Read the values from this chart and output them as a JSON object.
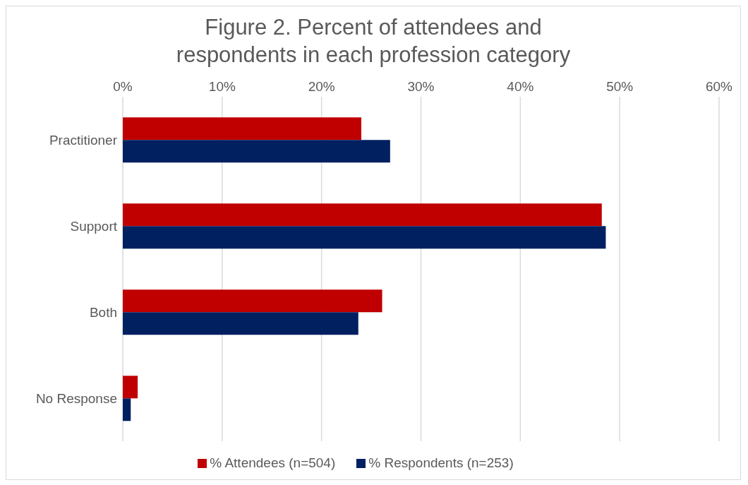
{
  "chart_data": {
    "type": "bar",
    "orientation": "horizontal",
    "title": "Figure 2. Percent of attendees and respondents in each profession category",
    "categories": [
      "Practitioner",
      "Support",
      "Both",
      "No Response"
    ],
    "series": [
      {
        "name": "% Attendees (n=504)",
        "color": "#c00000",
        "values": [
          24.0,
          48.2,
          26.1,
          1.5
        ]
      },
      {
        "name": "% Respondents (n=253)",
        "color": "#002060",
        "values": [
          26.9,
          48.6,
          23.7,
          0.8
        ]
      }
    ],
    "xlim": [
      0,
      60
    ],
    "xticks": [
      {
        "value": 0,
        "label": "0%"
      },
      {
        "value": 10,
        "label": "10%"
      },
      {
        "value": 20,
        "label": "20%"
      },
      {
        "value": 30,
        "label": "30%"
      },
      {
        "value": 40,
        "label": "40%"
      },
      {
        "value": 50,
        "label": "50%"
      },
      {
        "value": 60,
        "label": "60%"
      }
    ],
    "grid": "x",
    "legend": "bottom"
  }
}
